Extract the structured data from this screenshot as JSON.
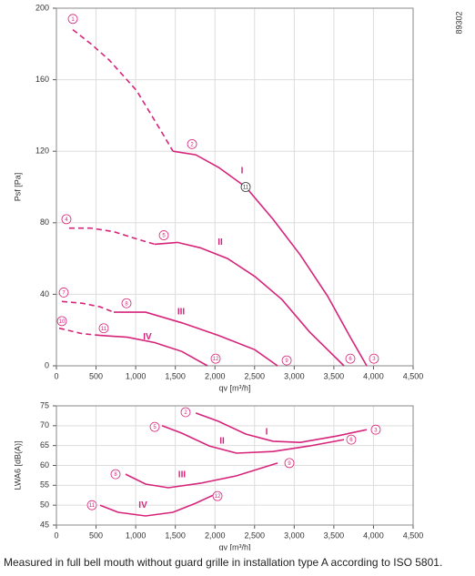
{
  "chart_data": [
    {
      "type": "line",
      "xlabel": "qv [m³/h]",
      "ylabel": "Psf [Pa]",
      "xlim": [
        0,
        4500
      ],
      "ylim": [
        0,
        200
      ],
      "grid": true,
      "xticks": [
        0,
        500,
        {
          "value": 1000,
          "label": "1,000"
        },
        {
          "value": 1500,
          "label": "1,500"
        },
        {
          "value": 2000,
          "label": "2,000"
        },
        {
          "value": 2500,
          "label": "2,500"
        },
        {
          "value": 3000,
          "label": "3,000"
        },
        {
          "value": 3500,
          "label": "3,500"
        },
        {
          "value": 4000,
          "label": "4,000"
        },
        {
          "value": 4500,
          "label": "4,500"
        }
      ],
      "yticks": [
        0,
        40,
        80,
        120,
        160,
        200
      ],
      "series": [
        {
          "name": "I",
          "color": "#d6247a",
          "dashed_x": [
            207,
            436,
            666,
            1010,
            1297,
            1470
          ],
          "dashed_values": [
            188,
            180,
            171,
            154,
            133,
            120
          ],
          "x": [
            1470,
            1757,
            2044,
            2388,
            2732,
            3077,
            3421,
            3708,
            3915
          ],
          "values": [
            120,
            118,
            111,
            100,
            82,
            62,
            39,
            16,
            0
          ]
        },
        {
          "name": "II",
          "color": "#d6247a",
          "dashed_x": [
            161,
            436,
            723,
            1010,
            1240
          ],
          "dashed_values": [
            77,
            77,
            75,
            71,
            68
          ],
          "x": [
            1240,
            1527,
            1814,
            2158,
            2503,
            2847,
            3192,
            3628
          ],
          "values": [
            68,
            69,
            66,
            60,
            50,
            37,
            19,
            0
          ]
        },
        {
          "name": "III",
          "color": "#d6247a",
          "dashed_x": [
            69,
            321,
            551,
            723
          ],
          "dashed_values": [
            36,
            35,
            33,
            30
          ],
          "x": [
            723,
            1125,
            1584,
            2044,
            2503,
            2790
          ],
          "values": [
            30,
            30,
            24,
            17,
            9,
            0
          ]
        },
        {
          "name": "IV",
          "color": "#d6247a",
          "dashed_x": [
            34,
            321,
            551
          ],
          "dashed_values": [
            21,
            18,
            17
          ],
          "x": [
            551,
            895,
            1240,
            1584,
            1906
          ],
          "values": [
            17,
            16,
            13,
            8,
            0
          ]
        }
      ],
      "annotations": [
        "1",
        "2",
        "11",
        "4",
        "5",
        "7",
        "8",
        "10",
        "11",
        "12",
        "9",
        "6",
        "3"
      ]
    },
    {
      "type": "line",
      "xlabel": "qv [m³/h]",
      "ylabel": "LWA6 [dB(A)]",
      "xlim": [
        0,
        4500
      ],
      "ylim": [
        45,
        75
      ],
      "grid": true,
      "xticks": [
        0,
        500,
        {
          "value": 1000,
          "label": "1,000"
        },
        {
          "value": 1500,
          "label": "1,500"
        },
        {
          "value": 2000,
          "label": "2,000"
        },
        {
          "value": 2500,
          "label": "2,500"
        },
        {
          "value": 3000,
          "label": "3,000"
        },
        {
          "value": 3500,
          "label": "3,500"
        },
        {
          "value": 4000,
          "label": "4,000"
        },
        {
          "value": 4500,
          "label": "4,500"
        }
      ],
      "yticks": [
        45,
        50,
        55,
        60,
        65,
        70,
        75
      ],
      "series": [
        {
          "name": "I",
          "color": "#d6247a",
          "x": [
            1757,
            2044,
            2388,
            2732,
            3077,
            3536,
            3915
          ],
          "values": [
            73.2,
            71.1,
            67.9,
            66.1,
            65.8,
            67.4,
            69.0
          ]
        },
        {
          "name": "II",
          "color": "#d6247a",
          "x": [
            1332,
            1584,
            1929,
            2273,
            2732,
            3192,
            3628
          ],
          "values": [
            70.0,
            68.1,
            64.9,
            63.1,
            63.5,
            64.9,
            66.5
          ]
        },
        {
          "name": "III",
          "color": "#d6247a",
          "x": [
            872,
            1125,
            1412,
            1814,
            2273,
            2790
          ],
          "values": [
            57.8,
            55.3,
            54.4,
            55.5,
            57.4,
            60.6
          ]
        },
        {
          "name": "IV",
          "color": "#d6247a",
          "x": [
            551,
            780,
            1125,
            1469,
            1757,
            1986
          ],
          "values": [
            50.0,
            48.2,
            47.3,
            48.2,
            50.5,
            52.6
          ]
        }
      ],
      "annotations": [
        "2",
        "5",
        "3",
        "6",
        "9",
        "8",
        "11",
        "12"
      ]
    }
  ],
  "code": "89302",
  "caption": "Measured in full bell mouth without guard grille in installation type A according to ISO 5801."
}
